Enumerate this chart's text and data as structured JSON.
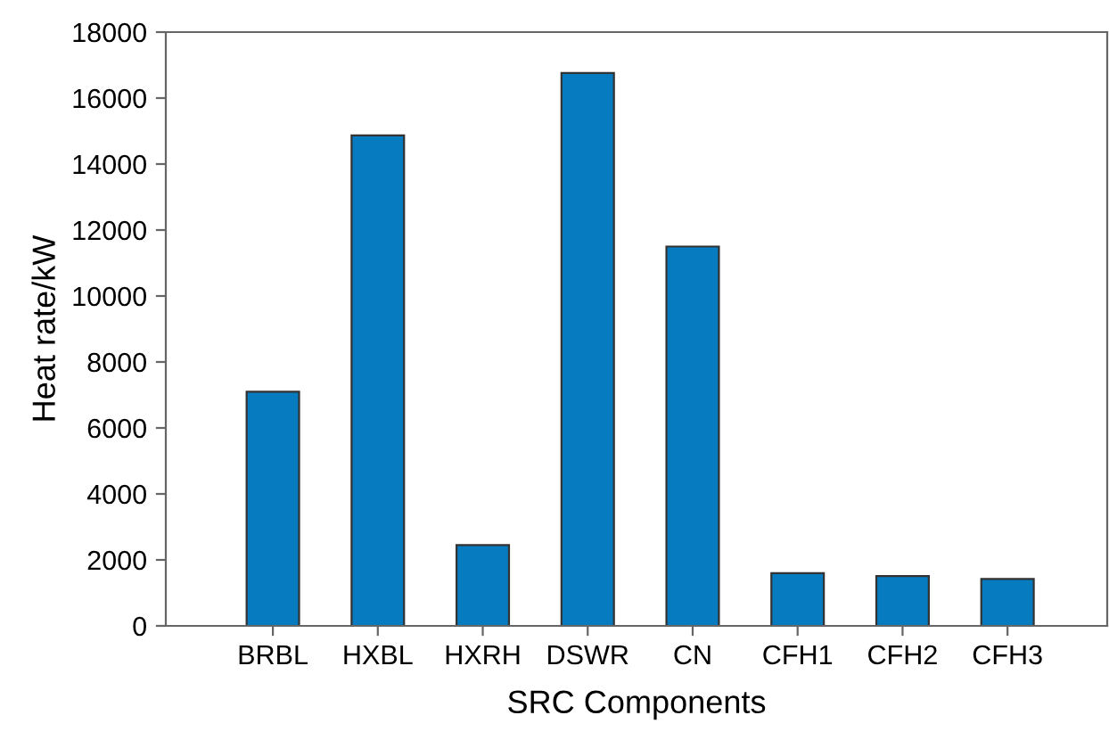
{
  "chart_data": {
    "type": "bar",
    "xlabel": "SRC Components",
    "ylabel": "Heat rate/kW",
    "categories": [
      "BRBL",
      "HXBL",
      "HXRH",
      "DSWR",
      "CN",
      "CFH1",
      "CFH2",
      "CFH3"
    ],
    "values": [
      7100,
      14870,
      2450,
      16760,
      11500,
      1600,
      1510,
      1420
    ],
    "color": "#077bc0",
    "ylim": [
      0,
      18000
    ],
    "yticks": [
      0,
      2000,
      4000,
      6000,
      8000,
      10000,
      12000,
      14000,
      16000,
      18000
    ],
    "grid": false
  }
}
